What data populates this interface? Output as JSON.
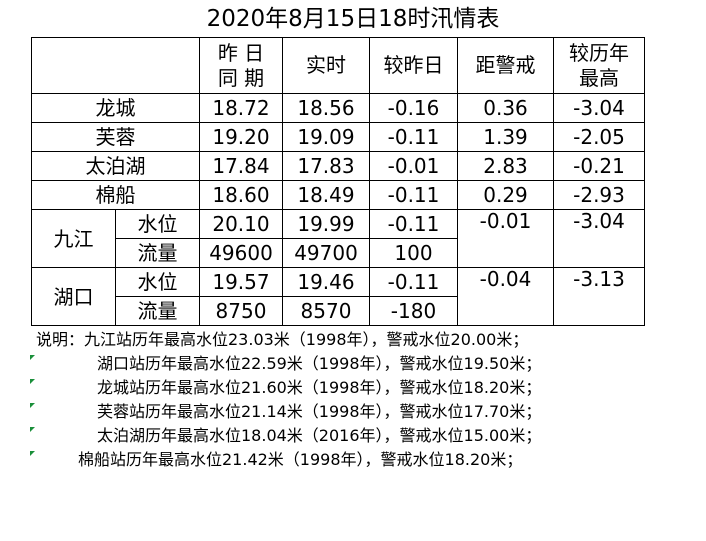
{
  "title": "2020年8月15日18时汛情表",
  "headers": {
    "col_prev_day": [
      "昨 日",
      "同 期"
    ],
    "col_current": "实时",
    "col_vs_prev": "较昨日",
    "col_to_warning": "距警戒",
    "col_vs_record": [
      "较历年",
      "最高"
    ]
  },
  "stations": [
    {
      "name": "龙城",
      "prev": "18.72",
      "now": "18.56",
      "diff": "-0.16",
      "warn": "0.36",
      "record": "-3.04"
    },
    {
      "name": "芙蓉",
      "prev": "19.20",
      "now": "19.09",
      "diff": "-0.11",
      "warn": "1.39",
      "record": "-2.05"
    },
    {
      "name": "太泊湖",
      "prev": "17.84",
      "now": "17.83",
      "diff": "-0.01",
      "warn": "2.83",
      "record": "-0.21"
    },
    {
      "name": "棉船",
      "prev": "18.60",
      "now": "18.49",
      "diff": "-0.11",
      "warn": "0.29",
      "record": "-2.93"
    }
  ],
  "jiujiang": {
    "name": "九江",
    "level": {
      "label": "水位",
      "prev": "20.10",
      "now": "19.99",
      "diff": "-0.11",
      "warn": "-0.01",
      "record": "-3.04"
    },
    "flow": {
      "label": "流量",
      "prev": "49600",
      "now": "49700",
      "diff": "100"
    }
  },
  "hukou": {
    "name": "湖口",
    "level": {
      "label": "水位",
      "prev": "19.57",
      "now": "19.46",
      "diff": "-0.11",
      "warn": "-0.04",
      "record": "-3.13"
    },
    "flow": {
      "label": "流量",
      "prev": "8750",
      "now": "8570",
      "diff": "-180"
    }
  },
  "notes": [
    "说明：九江站历年最高水位23.03米（1998年），警戒水位20.00米；",
    "湖口站历年最高水位22.59米（1998年），警戒水位19.50米；",
    "龙城站历年最高水位21.60米（1998年），警戒水位18.20米；",
    "芙蓉站历年最高水位21.14米（1998年），警戒水位17.70米；",
    "太泊湖历年最高水位18.04米（2016年），警戒水位15.00米；",
    "棉船站历年最高水位21.42米（1998年），警戒水位18.20米；"
  ],
  "colors": {
    "note_marker": "#1a8f3a"
  }
}
